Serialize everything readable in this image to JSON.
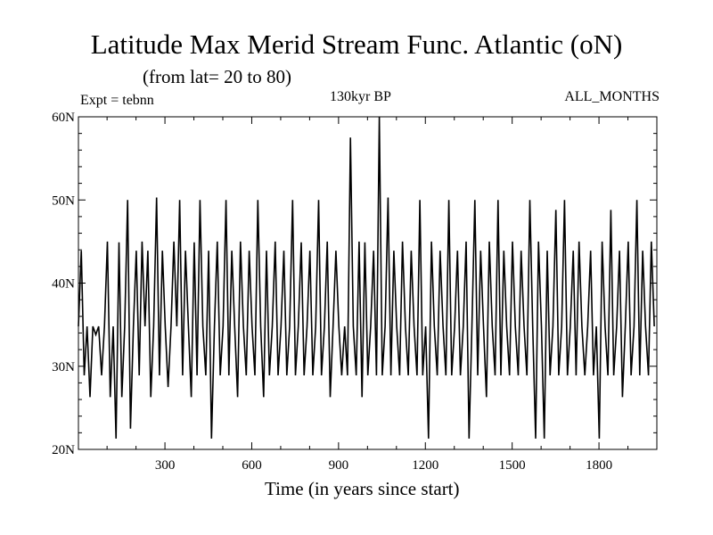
{
  "chart_data": {
    "type": "line",
    "title": "Latitude Max Merid Stream Func. Atlantic (oN)",
    "subtitle": "(from lat= 20 to 80)",
    "annotations": {
      "left": "Expt = tebnn",
      "center": "130kyr BP",
      "right": "ALL_MONTHS"
    },
    "xlabel": "Time (in years since start)",
    "ylabel": "",
    "xlim": [
      1,
      2000
    ],
    "ylim": [
      20,
      60
    ],
    "x_ticks": [
      300,
      600,
      900,
      1200,
      1500,
      1800
    ],
    "x_tick_labels": [
      "300",
      "600",
      "900",
      "1200",
      "1500",
      "1800"
    ],
    "y_ticks": [
      20,
      30,
      40,
      50,
      60
    ],
    "y_tick_labels": [
      "20N",
      "30N",
      "40N",
      "50N",
      "60N"
    ],
    "grid": false,
    "series": [
      {
        "x_start": 1,
        "x_step": 10,
        "values": [
          34.8,
          43.9,
          28.9,
          34.8,
          26.3,
          34.8,
          33.8,
          34.8,
          28.9,
          34.8,
          45.0,
          26.3,
          34.8,
          21.3,
          44.9,
          26.3,
          34.8,
          50.0,
          22.5,
          34.8,
          43.9,
          28.9,
          45.0,
          34.8,
          43.9,
          26.3,
          34.8,
          50.3,
          28.9,
          43.9,
          34.8,
          27.5,
          34.8,
          45.0,
          34.8,
          50.0,
          28.9,
          43.9,
          34.8,
          26.3,
          44.9,
          28.9,
          50.0,
          34.8,
          28.9,
          43.9,
          21.3,
          34.8,
          45.0,
          28.9,
          34.8,
          50.0,
          28.9,
          43.9,
          34.8,
          26.3,
          45.0,
          34.8,
          28.9,
          43.9,
          34.8,
          28.9,
          50.0,
          34.8,
          26.3,
          43.9,
          28.9,
          34.8,
          45.0,
          28.9,
          34.8,
          43.9,
          28.9,
          34.8,
          50.0,
          28.9,
          34.8,
          44.9,
          28.9,
          34.8,
          43.9,
          28.9,
          34.8,
          50.0,
          28.9,
          34.8,
          45.0,
          26.3,
          34.8,
          43.9,
          34.8,
          28.9,
          34.8,
          28.9,
          57.5,
          34.8,
          28.9,
          45.0,
          26.3,
          44.9,
          28.9,
          34.8,
          43.9,
          28.9,
          60.0,
          28.9,
          34.8,
          50.3,
          28.9,
          43.9,
          34.8,
          28.9,
          45.0,
          34.8,
          28.9,
          43.9,
          34.8,
          28.9,
          50.0,
          28.9,
          34.8,
          21.3,
          45.0,
          34.8,
          28.9,
          43.9,
          34.8,
          28.9,
          50.0,
          28.9,
          34.8,
          43.9,
          28.9,
          34.8,
          45.0,
          21.3,
          34.8,
          50.0,
          28.9,
          43.9,
          34.8,
          26.3,
          45.0,
          34.8,
          28.9,
          50.0,
          28.9,
          43.9,
          34.8,
          28.9,
          45.0,
          34.8,
          28.9,
          43.9,
          34.8,
          28.9,
          50.0,
          34.8,
          21.3,
          45.0,
          34.8,
          21.3,
          43.9,
          28.9,
          34.8,
          48.8,
          28.9,
          34.8,
          50.0,
          28.9,
          34.8,
          43.9,
          28.9,
          45.0,
          34.8,
          28.9,
          34.8,
          43.9,
          28.9,
          34.8,
          21.3,
          45.0,
          34.8,
          28.9,
          48.8,
          28.9,
          34.8,
          43.9,
          26.3,
          34.8,
          45.0,
          28.9,
          34.8,
          50.0,
          28.9,
          43.9,
          34.8,
          28.9,
          45.0,
          34.8
        ]
      }
    ]
  }
}
